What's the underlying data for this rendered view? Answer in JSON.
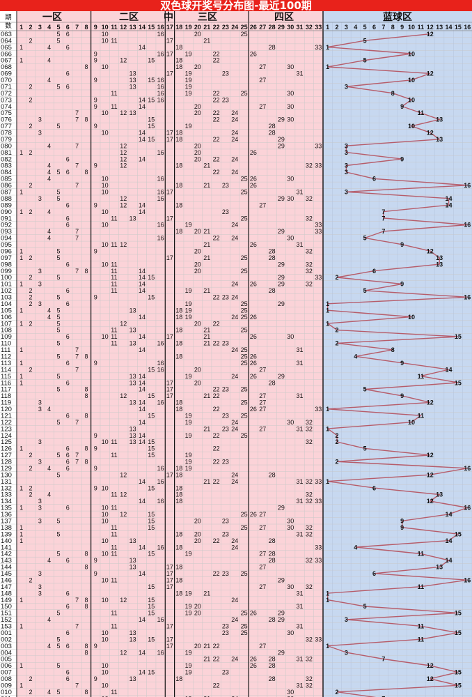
{
  "title": "双色球开奖号分布图-最近100期",
  "zones": [
    "一区",
    "二区",
    "中",
    "三区",
    "四区",
    "蓝球区"
  ],
  "issue_header": [
    "期",
    "数"
  ],
  "colors": {
    "title_bg": "#e8221b",
    "red_area": "#fbd3d8",
    "blue_area": "#c7d8f0",
    "line": "#b65c6a"
  },
  "chart_data": {
    "type": "table",
    "red_columns": [
      1,
      2,
      3,
      4,
      5,
      6,
      7,
      8,
      9,
      10,
      11,
      12,
      13,
      14,
      15,
      16,
      17,
      18,
      19,
      20,
      21,
      22,
      23,
      24,
      25,
      26,
      27,
      28,
      29,
      30,
      31,
      32,
      33
    ],
    "blue_columns": [
      1,
      2,
      3,
      4,
      5,
      6,
      7,
      8,
      9,
      10,
      11,
      12,
      13,
      14,
      15,
      16
    ],
    "draws": [
      {
        "issue": "063",
        "red": [
          5,
          6,
          10,
          16,
          20,
          25
        ],
        "blue": 12
      },
      {
        "issue": "064",
        "red": [
          2,
          5,
          10,
          11,
          17,
          21
        ],
        "blue": 5
      },
      {
        "issue": "065",
        "red": [
          1,
          4,
          6,
          14,
          18,
          28,
          33
        ],
        "blue": 1
      },
      {
        "issue": "066",
        "red": [
          9,
          16,
          17,
          19,
          22,
          26
        ],
        "blue": 10
      },
      {
        "issue": "067",
        "red": [
          1,
          4,
          9,
          12,
          15,
          18,
          22
        ],
        "blue": 5
      },
      {
        "issue": "068",
        "red": [
          8,
          10,
          18,
          20,
          27,
          30
        ],
        "blue": 1
      },
      {
        "issue": "069",
        "red": [
          6,
          13,
          17,
          19,
          23,
          31
        ],
        "blue": 12
      },
      {
        "issue": "070",
        "red": [
          4,
          9,
          13,
          15,
          16,
          19,
          27
        ],
        "blue": 10
      },
      {
        "issue": "071",
        "red": [
          2,
          5,
          6,
          13,
          16,
          19
        ],
        "blue": 3
      },
      {
        "issue": "072",
        "red": [
          11,
          16,
          19,
          22,
          25,
          30
        ],
        "blue": 8
      },
      {
        "issue": "073",
        "red": [
          2,
          9,
          14,
          15,
          16,
          22,
          23
        ],
        "blue": 10
      },
      {
        "issue": "074",
        "red": [
          9,
          11,
          14,
          20,
          27,
          30
        ],
        "blue": 9
      },
      {
        "issue": "075",
        "red": [
          7,
          10,
          12,
          13,
          20,
          22,
          24
        ],
        "blue": 11
      },
      {
        "issue": "076",
        "red": [
          3,
          7,
          8,
          15,
          22,
          24,
          29,
          30
        ],
        "blue": 13
      },
      {
        "issue": "077",
        "red": [
          2,
          5,
          9,
          15,
          19,
          28
        ],
        "blue": 10
      },
      {
        "issue": "078",
        "red": [
          3,
          10,
          14,
          17,
          18,
          24,
          28
        ],
        "blue": 12
      },
      {
        "issue": "079",
        "red": [
          14,
          15,
          17,
          18,
          22,
          24,
          29
        ],
        "blue": 13
      },
      {
        "issue": "080",
        "red": [
          4,
          7,
          12,
          20,
          29,
          33
        ],
        "blue": 3
      },
      {
        "issue": "081",
        "red": [
          1,
          2,
          12,
          16,
          20,
          26
        ],
        "blue": 3
      },
      {
        "issue": "082",
        "red": [
          6,
          12,
          14,
          20,
          22,
          24
        ],
        "blue": 9
      },
      {
        "issue": "083",
        "red": [
          4,
          7,
          9,
          12,
          18,
          21,
          32,
          33
        ],
        "blue": 3
      },
      {
        "issue": "084",
        "red": [
          4,
          5,
          6,
          8,
          22,
          24
        ],
        "blue": 3
      },
      {
        "issue": "085",
        "red": [
          4,
          10,
          16,
          25,
          26,
          30
        ],
        "blue": 6
      },
      {
        "issue": "086",
        "red": [
          2,
          7,
          10,
          18,
          21,
          23,
          26
        ],
        "blue": 16
      },
      {
        "issue": "087",
        "red": [
          1,
          5,
          10,
          16,
          17,
          25,
          31
        ],
        "blue": 3
      },
      {
        "issue": "088",
        "red": [
          3,
          5,
          12,
          16,
          29,
          30,
          32
        ],
        "blue": 14
      },
      {
        "issue": "089",
        "red": [
          6,
          9,
          12,
          14,
          18,
          27
        ],
        "blue": 14
      },
      {
        "issue": "090",
        "red": [
          1,
          2,
          4,
          10,
          14,
          23
        ],
        "blue": 7
      },
      {
        "issue": "091",
        "red": [
          6,
          11,
          13,
          17,
          25,
          32
        ],
        "blue": 7
      },
      {
        "issue": "092",
        "red": [
          6,
          10,
          16,
          19,
          24,
          33
        ],
        "blue": 16
      },
      {
        "issue": "093",
        "red": [
          4,
          7,
          18,
          20,
          21,
          29,
          33
        ],
        "blue": 7
      },
      {
        "issue": "094",
        "red": [
          4,
          7,
          16,
          22,
          24,
          30
        ],
        "blue": 5
      },
      {
        "issue": "095",
        "red": [
          10,
          11,
          12,
          21,
          26,
          31
        ],
        "blue": 9
      },
      {
        "issue": "096",
        "red": [
          1,
          5,
          9,
          20,
          28,
          32
        ],
        "blue": 12
      },
      {
        "issue": "097",
        "red": [
          1,
          2,
          5,
          17,
          21,
          25,
          28
        ],
        "blue": 13
      },
      {
        "issue": "098",
        "red": [
          6,
          10,
          11,
          20,
          29,
          32
        ],
        "blue": 13
      },
      {
        "issue": "099",
        "red": [
          3,
          7,
          8,
          11,
          14,
          20,
          25,
          32
        ],
        "blue": 6
      },
      {
        "issue": "100",
        "red": [
          2,
          5,
          11,
          14,
          15,
          29,
          33
        ],
        "blue": 2
      },
      {
        "issue": "101",
        "red": [
          1,
          3,
          11,
          14,
          24,
          26,
          29,
          32
        ],
        "blue": 9
      },
      {
        "issue": "102",
        "red": [
          2,
          6,
          11,
          14,
          19,
          21,
          28
        ],
        "blue": 5
      },
      {
        "issue": "103",
        "red": [
          2,
          5,
          9,
          15,
          22,
          23,
          24
        ],
        "blue": 16
      },
      {
        "issue": "104",
        "red": [
          2,
          3,
          6,
          19,
          25,
          29
        ],
        "blue": 1
      },
      {
        "issue": "105",
        "red": [
          1,
          4,
          5,
          13,
          18,
          19,
          25
        ],
        "blue": 1
      },
      {
        "issue": "106",
        "red": [
          4,
          5,
          14,
          18,
          19,
          24,
          25,
          26
        ],
        "blue": 10
      },
      {
        "issue": "107",
        "red": [
          1,
          2,
          5,
          12,
          20,
          22
        ],
        "blue": 1
      },
      {
        "issue": "108",
        "red": [
          5,
          11,
          13,
          18,
          21,
          25
        ],
        "blue": 2
      },
      {
        "issue": "109",
        "red": [
          6,
          10,
          11,
          14,
          17,
          21,
          26,
          30
        ],
        "blue": 15
      },
      {
        "issue": "110",
        "red": [
          5,
          11,
          13,
          16,
          18,
          21,
          22,
          23
        ],
        "blue": 2
      },
      {
        "issue": "111",
        "red": [
          1,
          7,
          14,
          24,
          25,
          31
        ],
        "blue": 8
      },
      {
        "issue": "112",
        "red": [
          5,
          7,
          8,
          18,
          25,
          26
        ],
        "blue": 4
      },
      {
        "issue": "113",
        "red": [
          1,
          6,
          9,
          16,
          25,
          26,
          31
        ],
        "blue": 9
      },
      {
        "issue": "114",
        "red": [
          2,
          7,
          15,
          16,
          20,
          27
        ],
        "blue": 14
      },
      {
        "issue": "115",
        "red": [
          1,
          5,
          13,
          14,
          19,
          24,
          26,
          29
        ],
        "blue": 11
      },
      {
        "issue": "116",
        "red": [
          1,
          6,
          13,
          14,
          17,
          20,
          28
        ],
        "blue": 15
      },
      {
        "issue": "117",
        "red": [
          5,
          8,
          14,
          17,
          22,
          23,
          25
        ],
        "blue": 5
      },
      {
        "issue": "118",
        "red": [
          8,
          12,
          15,
          17,
          21,
          22,
          27,
          31
        ],
        "blue": 9
      },
      {
        "issue": "119",
        "red": [
          3,
          13,
          14,
          16,
          18,
          25,
          27
        ],
        "blue": 12
      },
      {
        "issue": "120",
        "red": [
          3,
          4,
          14,
          18,
          22,
          26,
          27,
          33
        ],
        "blue": 1
      },
      {
        "issue": "121",
        "red": [
          6,
          8,
          15,
          19,
          23,
          25
        ],
        "blue": 11
      },
      {
        "issue": "122",
        "red": [
          5,
          7,
          14,
          19,
          24,
          30,
          32
        ],
        "blue": 10
      },
      {
        "issue": "123",
        "red": [
          13,
          21,
          23,
          24,
          27,
          31,
          32
        ],
        "blue": 1
      },
      {
        "issue": "124",
        "red": [
          9,
          13,
          14,
          19,
          22,
          25
        ],
        "blue": 2
      },
      {
        "issue": "125",
        "red": [
          3,
          10,
          11,
          13,
          14,
          15,
          32
        ],
        "blue": 2
      },
      {
        "issue": "126",
        "red": [
          1,
          6,
          8,
          9,
          15,
          22
        ],
        "blue": 5
      },
      {
        "issue": "127",
        "red": [
          2,
          5,
          6,
          7,
          11,
          15,
          19
        ],
        "blue": 12
      },
      {
        "issue": "128",
        "red": [
          3,
          6,
          7,
          8,
          19,
          22,
          23
        ],
        "blue": 2
      },
      {
        "issue": "129",
        "red": [
          2,
          4,
          6,
          9,
          16,
          18,
          19
        ],
        "blue": 16
      },
      {
        "issue": "130",
        "red": [
          5,
          12,
          17,
          18,
          24,
          28
        ],
        "blue": 12
      },
      {
        "issue": "131",
        "red": [
          14,
          16,
          21,
          22,
          24,
          31,
          32,
          33
        ],
        "blue": 1
      },
      {
        "issue": "132",
        "red": [
          1,
          2,
          9,
          10,
          15,
          18
        ],
        "blue": 6
      },
      {
        "issue": "133",
        "red": [
          2,
          4,
          11,
          12,
          18,
          32
        ],
        "blue": 13
      },
      {
        "issue": "134",
        "red": [
          3,
          14,
          16,
          18,
          31,
          32,
          33
        ],
        "blue": 12
      },
      {
        "issue": "135",
        "red": [
          1,
          3,
          6,
          10,
          11,
          29
        ],
        "blue": 16
      },
      {
        "issue": "136",
        "red": [
          10,
          12,
          15,
          25,
          26,
          27
        ],
        "blue": 14
      },
      {
        "issue": "137",
        "red": [
          3,
          5,
          10,
          15,
          20,
          23,
          30
        ],
        "blue": 9
      },
      {
        "issue": "138",
        "red": [
          1,
          11,
          15,
          25,
          27,
          30,
          32
        ],
        "blue": 9
      },
      {
        "issue": "139",
        "red": [
          1,
          5,
          11,
          18,
          20,
          23,
          31,
          32
        ],
        "blue": 15
      },
      {
        "issue": "140",
        "red": [
          1,
          10,
          13,
          20,
          22,
          24,
          28
        ],
        "blue": 14
      },
      {
        "issue": "141",
        "red": [
          11,
          14,
          16,
          18,
          24,
          33
        ],
        "blue": 4
      },
      {
        "issue": "142",
        "red": [
          5,
          8,
          10,
          11,
          15,
          19,
          27,
          28
        ],
        "blue": 11
      },
      {
        "issue": "143",
        "red": [
          4,
          6,
          9,
          13,
          28,
          32,
          33
        ],
        "blue": 14
      },
      {
        "issue": "144",
        "red": [
          8,
          13,
          17,
          18,
          27
        ],
        "blue": 13
      },
      {
        "issue": "145",
        "red": [
          3,
          9,
          14,
          17,
          22,
          23,
          25
        ],
        "blue": 6
      },
      {
        "issue": "146",
        "red": [
          2,
          10,
          11,
          17,
          18,
          29
        ],
        "blue": 16
      },
      {
        "issue": "147",
        "red": [
          3,
          15,
          17,
          27,
          30,
          32
        ],
        "blue": 11
      },
      {
        "issue": "148",
        "red": [
          3,
          6,
          18,
          19,
          21,
          31
        ],
        "blue": 1
      },
      {
        "issue": "149",
        "red": [
          1,
          7,
          8,
          10,
          12,
          15,
          24
        ],
        "blue": 1
      },
      {
        "issue": "150",
        "red": [
          6,
          8,
          15,
          19,
          20,
          31
        ],
        "blue": 5
      },
      {
        "issue": "151",
        "red": [
          5,
          11,
          15,
          19,
          20,
          25,
          26,
          29
        ],
        "blue": 15
      },
      {
        "issue": "152",
        "red": [
          4,
          14,
          16,
          24,
          28,
          29
        ],
        "blue": 3
      },
      {
        "issue": "153",
        "red": [
          1,
          7,
          11,
          17,
          23,
          25,
          31
        ],
        "blue": 11
      },
      {
        "issue": "001",
        "red": [
          6,
          10,
          13,
          23,
          25,
          30
        ],
        "blue": 15
      },
      {
        "issue": "002",
        "red": [
          5,
          10,
          13,
          15,
          17,
          32,
          33
        ],
        "blue": 11
      },
      {
        "issue": "003",
        "red": [
          4,
          5,
          6,
          8,
          9,
          17,
          20,
          21,
          22,
          27
        ],
        "blue": 1
      },
      {
        "issue": "004",
        "red": [
          8,
          12,
          14,
          16,
          19,
          29
        ],
        "blue": 3
      },
      {
        "issue": "005",
        "red": [
          21,
          22,
          24,
          26,
          28,
          31,
          32
        ],
        "blue": 7
      },
      {
        "issue": "006",
        "red": [
          1,
          5,
          10,
          19,
          26,
          28
        ],
        "blue": 12
      },
      {
        "issue": "007",
        "red": [
          6,
          10,
          14,
          15,
          19,
          23
        ],
        "blue": 15
      },
      {
        "issue": "008",
        "red": [
          2,
          6,
          9,
          13,
          18,
          28,
          32
        ],
        "blue": 12
      },
      {
        "issue": "009",
        "red": [
          1,
          7,
          10,
          22,
          31,
          32
        ],
        "blue": 15
      },
      {
        "issue": "010",
        "red": [
          2,
          4,
          5,
          8,
          11,
          30
        ],
        "blue": 2
      },
      {
        "issue": "011",
        "red": [
          10,
          19,
          21,
          24,
          30
        ],
        "blue": 7
      },
      {
        "issue": "012",
        "red": [
          7,
          10,
          21,
          23,
          30,
          31,
          33
        ],
        "blue": 14
      },
      {
        "issue": "013",
        "red": [
          5,
          7,
          14,
          16,
          19,
          24,
          30
        ],
        "blue": 1
      },
      {
        "issue": "014",
        "red": [
          1,
          2,
          3,
          14,
          16,
          19
        ],
        "blue": 3
      }
    ]
  }
}
